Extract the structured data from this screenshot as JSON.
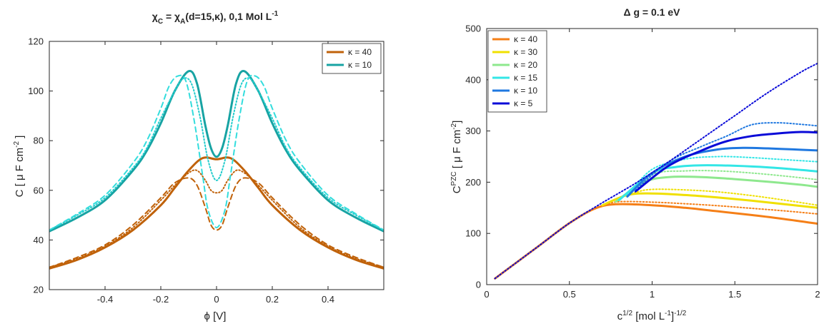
{
  "chart_data": [
    {
      "type": "line",
      "title_main": "χ",
      "title_sub1": "C",
      "title_mid": " = χ",
      "title_sub2": "A",
      "title_rest": "(d=15,κ),     0,1 Mol L",
      "title_sup": "-1",
      "xlabel": "ϕ  [V]",
      "ylabel_main": "C  [ μ F cm",
      "ylabel_sup": "-2",
      "ylabel_end": " ]",
      "xlim": [
        -0.6,
        0.6
      ],
      "ylim": [
        20,
        120
      ],
      "xticks": [
        -0.4,
        -0.2,
        0,
        0.2,
        0.4
      ],
      "yticks": [
        20,
        40,
        60,
        80,
        100,
        120
      ],
      "x_tick_labels": [
        "-0.4",
        "-0.2",
        "0",
        "0.2",
        "0.4"
      ],
      "y_tick_labels": [
        "20",
        "40",
        "60",
        "80",
        "100",
        "120"
      ],
      "legend_position": "top-right",
      "series": [
        {
          "name": "κ = 40",
          "color": "#c0620a",
          "style": "solid",
          "x": [
            -0.6,
            -0.5,
            -0.4,
            -0.3,
            -0.2,
            -0.15,
            -0.1,
            -0.05,
            0,
            0.05,
            0.1,
            0.15,
            0.2,
            0.3,
            0.4,
            0.5,
            0.6
          ],
          "y": [
            28.5,
            32,
            37,
            44,
            54,
            61,
            68,
            73,
            72.5,
            73,
            68,
            61,
            54,
            44,
            37,
            32,
            28.5
          ]
        },
        {
          "name": "",
          "color": "#c0620a",
          "style": "dotted",
          "x": [
            -0.6,
            -0.5,
            -0.4,
            -0.3,
            -0.2,
            -0.15,
            -0.1,
            -0.07,
            -0.04,
            -0.02,
            0,
            0.02,
            0.04,
            0.07,
            0.1,
            0.15,
            0.2,
            0.3,
            0.4,
            0.5,
            0.6
          ],
          "y": [
            29,
            32.5,
            37.5,
            45,
            56,
            62,
            67,
            68,
            64,
            60,
            59,
            60,
            64,
            68,
            67,
            62,
            56,
            45,
            37.5,
            32.5,
            29
          ]
        },
        {
          "name": "",
          "color": "#c0620a",
          "style": "dashed",
          "x": [
            -0.6,
            -0.5,
            -0.4,
            -0.3,
            -0.2,
            -0.15,
            -0.1,
            -0.07,
            -0.04,
            -0.02,
            0,
            0.02,
            0.04,
            0.07,
            0.1,
            0.15,
            0.2,
            0.3,
            0.4,
            0.5,
            0.6
          ],
          "y": [
            29,
            33,
            38,
            46,
            57,
            63,
            65,
            62,
            53,
            46,
            44,
            46,
            53,
            62,
            65,
            63,
            57,
            46,
            38,
            33,
            29
          ]
        },
        {
          "name": "κ = 10",
          "color": "#17a3a3",
          "style": "solid",
          "x": [
            -0.6,
            -0.5,
            -0.4,
            -0.3,
            -0.25,
            -0.2,
            -0.15,
            -0.1,
            -0.07,
            -0.04,
            -0.02,
            0,
            0.02,
            0.04,
            0.07,
            0.1,
            0.15,
            0.2,
            0.25,
            0.3,
            0.4,
            0.5,
            0.6
          ],
          "y": [
            43.5,
            49,
            56,
            68,
            76,
            87,
            100,
            108,
            103,
            86,
            77,
            73.5,
            77,
            86,
            103,
            108,
            100,
            87,
            76,
            68,
            56,
            49,
            43.5
          ]
        },
        {
          "name": "",
          "color": "#22cccc",
          "style": "dotted",
          "x": [
            -0.6,
            -0.5,
            -0.4,
            -0.3,
            -0.25,
            -0.2,
            -0.15,
            -0.12,
            -0.09,
            -0.06,
            -0.03,
            0,
            0.03,
            0.06,
            0.09,
            0.12,
            0.15,
            0.2,
            0.25,
            0.3,
            0.4,
            0.5,
            0.6
          ],
          "y": [
            44,
            50,
            57,
            69,
            77,
            89,
            100,
            105,
            103,
            90,
            72,
            64,
            72,
            90,
            103,
            105,
            100,
            89,
            77,
            69,
            57,
            50,
            44
          ]
        },
        {
          "name": "",
          "color": "#33dddd",
          "style": "dashed",
          "x": [
            -0.6,
            -0.5,
            -0.4,
            -0.3,
            -0.25,
            -0.2,
            -0.17,
            -0.14,
            -0.11,
            -0.08,
            -0.05,
            -0.03,
            0,
            0.03,
            0.05,
            0.08,
            0.11,
            0.14,
            0.17,
            0.2,
            0.25,
            0.3,
            0.4,
            0.5,
            0.6
          ],
          "y": [
            44,
            50.5,
            58,
            71,
            80,
            93,
            102,
            106,
            104,
            88,
            66,
            52,
            45,
            52,
            66,
            88,
            104,
            106,
            102,
            93,
            80,
            71,
            58,
            50.5,
            44
          ]
        }
      ]
    },
    {
      "type": "line",
      "title": "Δ  g = 0.1 eV",
      "xlabel_main": "c",
      "xlabel_sup": "1/2",
      "xlabel_mid": "     [mol L",
      "xlabel_sup2": "-1",
      "xlabel_end": "]",
      "xlabel_sup3": "-1/2",
      "ylabel_main": "C",
      "ylabel_sup": "PZC",
      "ylabel_rest": "   [ μ F cm",
      "ylabel_sup2": "-2",
      "ylabel_end": "]",
      "xlim": [
        0,
        2
      ],
      "ylim": [
        0,
        500
      ],
      "xticks": [
        0,
        0.5,
        1,
        1.5,
        2
      ],
      "yticks": [
        0,
        100,
        200,
        300,
        400,
        500
      ],
      "x_tick_labels": [
        "0",
        "0.5",
        "1",
        "1.5",
        "2"
      ],
      "y_tick_labels": [
        "0",
        "100",
        "200",
        "300",
        "400",
        "500"
      ],
      "legend_position": "top-left",
      "series": [
        {
          "name": "κ = 40",
          "color": "#f57f17",
          "style": "solid",
          "x": [
            0.05,
            0.3,
            0.5,
            0.65,
            0.78,
            1.0,
            1.2,
            1.4,
            1.6,
            1.8,
            2.0
          ],
          "y": [
            12,
            72,
            120,
            148,
            157,
            155,
            150,
            143,
            136,
            128,
            119
          ]
        },
        {
          "name": "",
          "color": "#f57f17",
          "style": "dotted",
          "x": [
            0.7,
            0.8,
            1.0,
            1.2,
            1.4,
            1.6,
            1.8,
            2.0
          ],
          "y": [
            155,
            162,
            161,
            158,
            154,
            149,
            144,
            138
          ]
        },
        {
          "name": "κ = 30",
          "color": "#f0e000",
          "style": "solid",
          "x": [
            0.7,
            0.85,
            1.0,
            1.2,
            1.4,
            1.6,
            1.8,
            2.0
          ],
          "y": [
            155,
            175,
            178,
            175,
            170,
            164,
            157,
            150
          ]
        },
        {
          "name": "",
          "color": "#f0e000",
          "style": "dotted",
          "x": [
            0.75,
            0.9,
            1.0,
            1.2,
            1.4,
            1.6,
            1.8,
            2.0
          ],
          "y": [
            162,
            180,
            186,
            185,
            181,
            174,
            165,
            155
          ]
        },
        {
          "name": "κ = 20",
          "color": "#8ee88e",
          "style": "solid",
          "x": [
            0.78,
            0.95,
            1.1,
            1.3,
            1.5,
            1.7,
            1.9,
            2.0
          ],
          "y": [
            162,
            200,
            210,
            210,
            206,
            201,
            195,
            191
          ]
        },
        {
          "name": "",
          "color": "#8ee88e",
          "style": "dotted",
          "x": [
            0.82,
            1.0,
            1.2,
            1.4,
            1.6,
            1.8,
            2.0
          ],
          "y": [
            170,
            215,
            222,
            222,
            218,
            212,
            205
          ]
        },
        {
          "name": "κ = 15",
          "color": "#33e6e6",
          "style": "solid",
          "x": [
            0.8,
            1.0,
            1.15,
            1.3,
            1.5,
            1.7,
            1.9,
            2.0
          ],
          "y": [
            165,
            218,
            230,
            233,
            232,
            229,
            224,
            221
          ]
        },
        {
          "name": "",
          "color": "#33e6e6",
          "style": "dotted",
          "x": [
            0.85,
            1.0,
            1.2,
            1.4,
            1.6,
            1.8,
            2.0
          ],
          "y": [
            175,
            225,
            245,
            250,
            248,
            244,
            240
          ]
        },
        {
          "name": "κ = 10",
          "color": "#1f78e0",
          "style": "solid",
          "x": [
            0.85,
            1.0,
            1.2,
            1.4,
            1.55,
            1.7,
            1.85,
            2.0
          ],
          "y": [
            172,
            218,
            250,
            264,
            267,
            266,
            264,
            262
          ]
        },
        {
          "name": "",
          "color": "#1f78e0",
          "style": "dotted",
          "x": [
            0.9,
            1.1,
            1.3,
            1.45,
            1.6,
            1.75,
            1.9,
            2.0
          ],
          "y": [
            185,
            240,
            270,
            290,
            312,
            316,
            313,
            310
          ]
        },
        {
          "name": "κ = 5",
          "color": "#0a0ad8",
          "style": "solid",
          "x": [
            0.9,
            1.1,
            1.3,
            1.45,
            1.6,
            1.75,
            1.9,
            2.0
          ],
          "y": [
            182,
            232,
            262,
            280,
            290,
            295,
            298,
            297
          ]
        },
        {
          "name": "",
          "color": "#0a0ad8",
          "style": "dotted",
          "x": [
            0.05,
            0.3,
            0.5,
            0.7,
            0.9,
            1.1,
            1.3,
            1.5,
            1.7,
            1.9,
            2.0
          ],
          "y": [
            12,
            72,
            120,
            160,
            198,
            240,
            285,
            330,
            375,
            415,
            432
          ]
        }
      ]
    }
  ]
}
